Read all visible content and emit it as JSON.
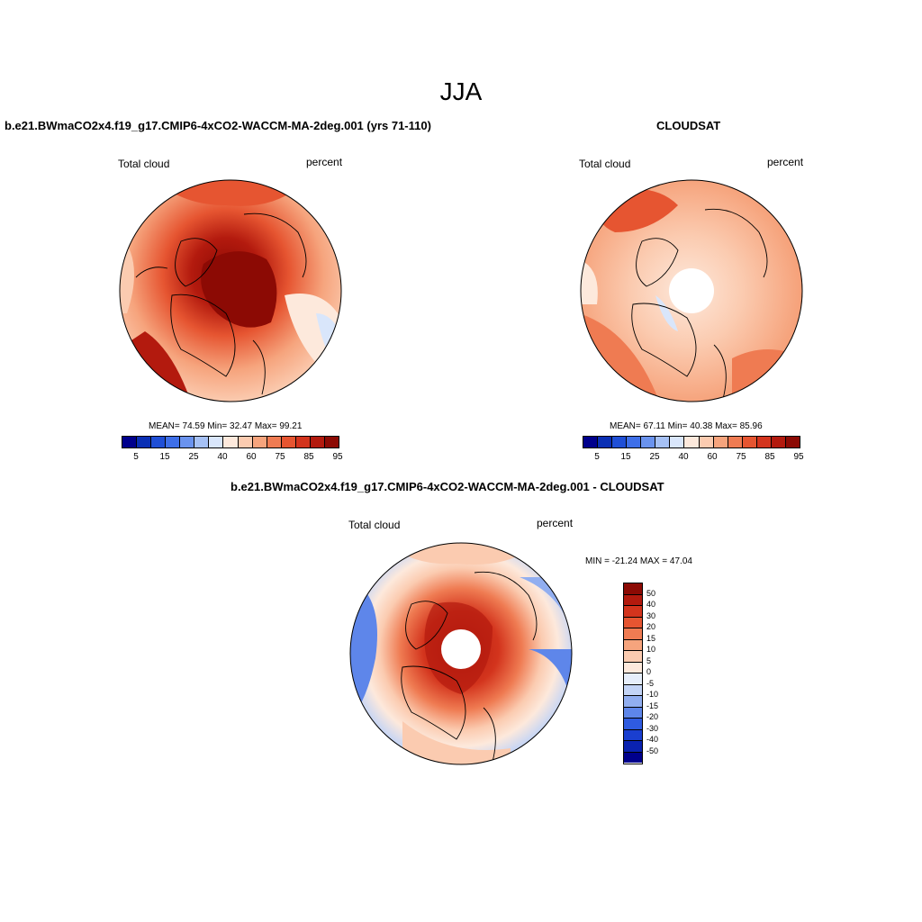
{
  "season": "JJA",
  "panels": {
    "model": {
      "title": "b.e21.BWmaCO2x4.f19_g17.CMIP6-4xCO2-WACCM-MA-2deg.001 (yrs 71-110)",
      "variable": "Total cloud",
      "units": "percent",
      "stats": "MEAN=  74.59  Min=  32.47  Max=  99.21"
    },
    "obs": {
      "title": "CLOUDSAT",
      "variable": "Total cloud",
      "units": "percent",
      "stats": "MEAN=  67.11  Min=  40.38  Max=  85.96"
    },
    "diff": {
      "title": "b.e21.BWmaCO2x4.f19_g17.CMIP6-4xCO2-WACCM-MA-2deg.001 - CLOUDSAT",
      "variable": "Total cloud",
      "units": "percent",
      "stats": "MIN = -21.24 MAX =  47.04"
    }
  },
  "abs_colorbar": {
    "colors": [
      "#00008c",
      "#0a2fb4",
      "#1f4fd6",
      "#3e6fe8",
      "#6a93ee",
      "#a6c1f5",
      "#d9e6fb",
      "#fde9dc",
      "#fbcbb0",
      "#f6a47d",
      "#ef7b52",
      "#e65531",
      "#d3341d",
      "#b31a0e",
      "#8c0a04"
    ],
    "tick_labels": [
      "5",
      "15",
      "25",
      "40",
      "60",
      "75",
      "85",
      "95"
    ]
  },
  "diff_colorbar": {
    "colors": [
      "#8c0a04",
      "#b31a0e",
      "#d3341d",
      "#e65531",
      "#ef7b52",
      "#f6a47d",
      "#fbcbb0",
      "#fde9dc",
      "#e6eefb",
      "#c3d4f6",
      "#91aef0",
      "#5e86ea",
      "#2f5be0",
      "#1a3fd0",
      "#0a22b0",
      "#00008c"
    ],
    "tick_labels": [
      "50",
      "40",
      "30",
      "20",
      "15",
      "10",
      "5",
      "0",
      "-5",
      "-10",
      "-15",
      "-20",
      "-30",
      "-40",
      "-50"
    ]
  }
}
